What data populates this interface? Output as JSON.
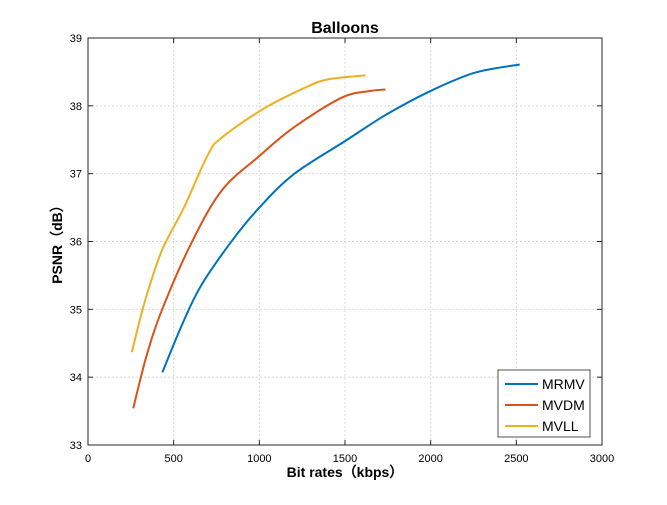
{
  "chart_data": {
    "type": "line",
    "title": "Balloons",
    "xlabel": "Bit rates（kbps）",
    "ylabel": "PSNR（dB）",
    "xlim": [
      0,
      3000
    ],
    "ylim": [
      33,
      39
    ],
    "xticks": [
      0,
      500,
      1000,
      1500,
      2000,
      2500,
      3000
    ],
    "yticks": [
      33,
      34,
      35,
      36,
      37,
      38,
      39
    ],
    "grid": true,
    "legend_position": "bottom-right",
    "series": [
      {
        "name": "MRMV",
        "color": "#0072BD",
        "x": [
          434,
          550,
          660,
          840,
          1000,
          1200,
          1500,
          1740,
          2000,
          2260,
          2520
        ],
        "y": [
          34.07,
          34.78,
          35.35,
          36.01,
          36.5,
          36.99,
          37.48,
          37.87,
          38.22,
          38.49,
          38.61
        ]
      },
      {
        "name": "MVDM",
        "color": "#D95319",
        "x": [
          264,
          340,
          430,
          600,
          780,
          1000,
          1200,
          1480,
          1650,
          1736
        ],
        "y": [
          33.54,
          34.3,
          34.98,
          35.96,
          36.75,
          37.26,
          37.68,
          38.12,
          38.22,
          38.24
        ]
      },
      {
        "name": "MVLL",
        "color": "#EDB120",
        "x": [
          256,
          330,
          430,
          560,
          700,
          780,
          1020,
          1260,
          1400,
          1620
        ],
        "y": [
          34.37,
          35.1,
          35.86,
          36.5,
          37.28,
          37.53,
          37.95,
          38.26,
          38.39,
          38.45
        ]
      }
    ]
  }
}
